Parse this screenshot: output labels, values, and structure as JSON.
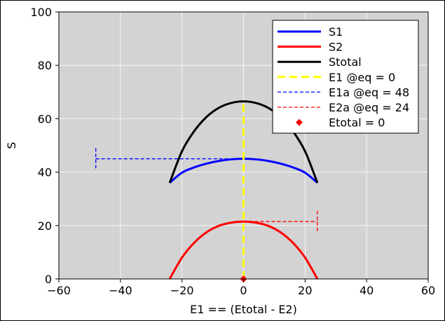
{
  "chart_data": {
    "type": "line",
    "title": "",
    "xlabel": "E1 == (Etotal - E2)",
    "ylabel": "S",
    "xlim": [
      -60,
      60
    ],
    "ylim": [
      0,
      100
    ],
    "xticks": [
      -60,
      -40,
      -20,
      0,
      20,
      40,
      60
    ],
    "xtick_labels": [
      "−60",
      "−40",
      "−20",
      "0",
      "20",
      "40",
      "60"
    ],
    "yticks": [
      0,
      20,
      40,
      60,
      80,
      100
    ],
    "ytick_labels": [
      "0",
      "20",
      "40",
      "60",
      "80",
      "100"
    ],
    "grid": true,
    "background": "#d3d3d3",
    "legend_position": "top-right",
    "series": [
      {
        "name": "S1",
        "color": "#0000ff",
        "style": "solid",
        "x": [
          -24,
          -20,
          -16,
          -12,
          -8,
          -4,
          0,
          4,
          8,
          12,
          16,
          20,
          24
        ],
        "y": [
          36.0,
          39.8,
          41.8,
          43.2,
          44.2,
          44.8,
          45.0,
          44.8,
          44.2,
          43.2,
          41.8,
          39.8,
          36.0
        ]
      },
      {
        "name": "S2",
        "color": "#ff0000",
        "style": "solid",
        "x": [
          -24,
          -20,
          -16,
          -12,
          -8,
          -4,
          0,
          4,
          8,
          12,
          16,
          20,
          24
        ],
        "y": [
          0.0,
          8.0,
          13.6,
          17.5,
          19.9,
          21.1,
          21.5,
          21.1,
          19.9,
          17.5,
          13.6,
          8.0,
          0.0
        ]
      },
      {
        "name": "Stotal",
        "color": "#000000",
        "style": "solid",
        "x": [
          -24,
          -20,
          -16,
          -12,
          -8,
          -4,
          0,
          4,
          8,
          12,
          16,
          20,
          24
        ],
        "y": [
          36.0,
          47.8,
          55.4,
          60.7,
          64.1,
          65.9,
          66.5,
          65.9,
          64.1,
          60.7,
          55.4,
          47.8,
          36.0
        ]
      },
      {
        "name": "E1 @eq = 0",
        "color": "#ffff00",
        "style": "dashed-thick",
        "x": [
          0,
          0
        ],
        "y": [
          0,
          66.5
        ]
      },
      {
        "name": "E1a @eq = 48",
        "color": "#0000ff",
        "style": "dashed-bar",
        "x": [
          -48,
          0
        ],
        "y": [
          45.0,
          45.0
        ],
        "cap_half_height": 4
      },
      {
        "name": "E2a @eq = 24",
        "color": "#ff0000",
        "style": "dashed-bar",
        "x": [
          0,
          24
        ],
        "y": [
          21.5,
          21.5
        ],
        "cap_half_height": 4
      },
      {
        "name": "Etotal = 0",
        "color": "#ff0000",
        "style": "marker-diamond",
        "x": [
          0
        ],
        "y": [
          0
        ]
      }
    ]
  }
}
